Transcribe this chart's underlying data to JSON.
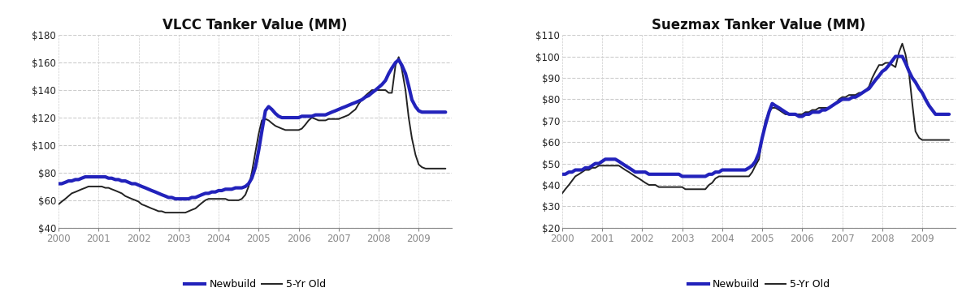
{
  "vlcc_title": "VLCC Tanker Value (MM)",
  "suez_title": "Suezmax Tanker Value (MM)",
  "vlcc_ylim": [
    40,
    180
  ],
  "vlcc_yticks": [
    40,
    60,
    80,
    100,
    120,
    140,
    160,
    180
  ],
  "suez_ylim": [
    20,
    110
  ],
  "suez_yticks": [
    20,
    30,
    40,
    50,
    60,
    70,
    80,
    90,
    100,
    110
  ],
  "xlim": [
    2000.0,
    2009.83
  ],
  "xticks": [
    2000,
    2001,
    2002,
    2003,
    2004,
    2005,
    2006,
    2007,
    2008,
    2009
  ],
  "newbuild_color": "#2222bb",
  "fiveyr_color": "#222222",
  "newbuild_lw": 3.0,
  "fiveyr_lw": 1.4,
  "title_fontsize": 12,
  "tick_fontsize": 8.5,
  "legend_fontsize": 9,
  "bg_color": "#ffffff",
  "grid_color": "#cccccc",
  "vlcc_newbuild_x": [
    2000.0,
    2000.08,
    2000.17,
    2000.25,
    2000.33,
    2000.42,
    2000.5,
    2000.58,
    2000.67,
    2000.75,
    2000.83,
    2000.92,
    2001.0,
    2001.08,
    2001.17,
    2001.25,
    2001.33,
    2001.42,
    2001.5,
    2001.58,
    2001.67,
    2001.75,
    2001.83,
    2001.92,
    2002.0,
    2002.08,
    2002.17,
    2002.25,
    2002.33,
    2002.42,
    2002.5,
    2002.58,
    2002.67,
    2002.75,
    2002.83,
    2002.92,
    2003.0,
    2003.08,
    2003.17,
    2003.25,
    2003.33,
    2003.42,
    2003.5,
    2003.58,
    2003.67,
    2003.75,
    2003.83,
    2003.92,
    2004.0,
    2004.08,
    2004.17,
    2004.25,
    2004.33,
    2004.42,
    2004.5,
    2004.58,
    2004.67,
    2004.75,
    2004.83,
    2004.92,
    2005.0,
    2005.08,
    2005.17,
    2005.25,
    2005.33,
    2005.42,
    2005.5,
    2005.58,
    2005.67,
    2005.75,
    2005.83,
    2005.92,
    2006.0,
    2006.08,
    2006.17,
    2006.25,
    2006.33,
    2006.42,
    2006.5,
    2006.58,
    2006.67,
    2006.75,
    2006.83,
    2006.92,
    2007.0,
    2007.08,
    2007.17,
    2007.25,
    2007.33,
    2007.42,
    2007.5,
    2007.58,
    2007.67,
    2007.75,
    2007.83,
    2007.92,
    2008.0,
    2008.08,
    2008.17,
    2008.25,
    2008.33,
    2008.42,
    2008.5,
    2008.58,
    2008.67,
    2008.75,
    2008.83,
    2008.92,
    2009.0,
    2009.08,
    2009.17,
    2009.25,
    2009.33,
    2009.42,
    2009.5,
    2009.58,
    2009.67
  ],
  "vlcc_newbuild_y": [
    72,
    72,
    73,
    74,
    74,
    75,
    75,
    76,
    77,
    77,
    77,
    77,
    77,
    77,
    77,
    76,
    76,
    75,
    75,
    74,
    74,
    73,
    72,
    72,
    71,
    70,
    69,
    68,
    67,
    66,
    65,
    64,
    63,
    62,
    62,
    61,
    61,
    61,
    61,
    61,
    62,
    62,
    63,
    64,
    65,
    65,
    66,
    66,
    67,
    67,
    68,
    68,
    68,
    69,
    69,
    69,
    70,
    72,
    76,
    84,
    96,
    110,
    125,
    128,
    126,
    123,
    121,
    120,
    120,
    120,
    120,
    120,
    120,
    121,
    121,
    121,
    121,
    122,
    122,
    122,
    122,
    123,
    124,
    125,
    126,
    127,
    128,
    129,
    130,
    131,
    132,
    133,
    135,
    136,
    138,
    140,
    142,
    144,
    147,
    152,
    156,
    160,
    162,
    158,
    152,
    143,
    133,
    128,
    125,
    124,
    124,
    124,
    124,
    124,
    124,
    124,
    124
  ],
  "vlcc_fiveyr_x": [
    2000.0,
    2000.08,
    2000.17,
    2000.25,
    2000.33,
    2000.42,
    2000.5,
    2000.58,
    2000.67,
    2000.75,
    2000.83,
    2000.92,
    2001.0,
    2001.08,
    2001.17,
    2001.25,
    2001.33,
    2001.42,
    2001.5,
    2001.58,
    2001.67,
    2001.75,
    2001.83,
    2001.92,
    2002.0,
    2002.08,
    2002.17,
    2002.25,
    2002.33,
    2002.42,
    2002.5,
    2002.58,
    2002.67,
    2002.75,
    2002.83,
    2002.92,
    2003.0,
    2003.08,
    2003.17,
    2003.25,
    2003.33,
    2003.42,
    2003.5,
    2003.58,
    2003.67,
    2003.75,
    2003.83,
    2003.92,
    2004.0,
    2004.08,
    2004.17,
    2004.25,
    2004.33,
    2004.42,
    2004.5,
    2004.58,
    2004.67,
    2004.75,
    2004.83,
    2004.92,
    2005.0,
    2005.08,
    2005.17,
    2005.25,
    2005.33,
    2005.42,
    2005.5,
    2005.58,
    2005.67,
    2005.75,
    2005.83,
    2005.92,
    2006.0,
    2006.08,
    2006.17,
    2006.25,
    2006.33,
    2006.42,
    2006.5,
    2006.58,
    2006.67,
    2006.75,
    2006.83,
    2006.92,
    2007.0,
    2007.08,
    2007.17,
    2007.25,
    2007.33,
    2007.42,
    2007.5,
    2007.58,
    2007.67,
    2007.75,
    2007.83,
    2007.92,
    2008.0,
    2008.08,
    2008.17,
    2008.25,
    2008.33,
    2008.42,
    2008.5,
    2008.58,
    2008.67,
    2008.75,
    2008.83,
    2008.92,
    2009.0,
    2009.08,
    2009.17,
    2009.25,
    2009.33,
    2009.42,
    2009.5,
    2009.58,
    2009.67
  ],
  "vlcc_fiveyr_y": [
    57,
    59,
    61,
    63,
    65,
    66,
    67,
    68,
    69,
    70,
    70,
    70,
    70,
    70,
    69,
    69,
    68,
    67,
    66,
    65,
    63,
    62,
    61,
    60,
    59,
    57,
    56,
    55,
    54,
    53,
    52,
    52,
    51,
    51,
    51,
    51,
    51,
    51,
    51,
    52,
    53,
    54,
    56,
    58,
    60,
    61,
    61,
    61,
    61,
    61,
    61,
    60,
    60,
    60,
    60,
    61,
    64,
    70,
    80,
    95,
    108,
    118,
    119,
    118,
    116,
    114,
    113,
    112,
    111,
    111,
    111,
    111,
    111,
    112,
    115,
    118,
    120,
    119,
    118,
    118,
    118,
    119,
    119,
    119,
    119,
    120,
    121,
    122,
    124,
    126,
    130,
    133,
    136,
    138,
    140,
    140,
    140,
    140,
    140,
    138,
    138,
    158,
    164,
    155,
    140,
    120,
    105,
    93,
    86,
    84,
    83,
    83,
    83,
    83,
    83,
    83,
    83
  ],
  "suez_newbuild_x": [
    2000.0,
    2000.08,
    2000.17,
    2000.25,
    2000.33,
    2000.42,
    2000.5,
    2000.58,
    2000.67,
    2000.75,
    2000.83,
    2000.92,
    2001.0,
    2001.08,
    2001.17,
    2001.25,
    2001.33,
    2001.42,
    2001.5,
    2001.58,
    2001.67,
    2001.75,
    2001.83,
    2001.92,
    2002.0,
    2002.08,
    2002.17,
    2002.25,
    2002.33,
    2002.42,
    2002.5,
    2002.58,
    2002.67,
    2002.75,
    2002.83,
    2002.92,
    2003.0,
    2003.08,
    2003.17,
    2003.25,
    2003.33,
    2003.42,
    2003.5,
    2003.58,
    2003.67,
    2003.75,
    2003.83,
    2003.92,
    2004.0,
    2004.08,
    2004.17,
    2004.25,
    2004.33,
    2004.42,
    2004.5,
    2004.58,
    2004.67,
    2004.75,
    2004.83,
    2004.92,
    2005.0,
    2005.08,
    2005.17,
    2005.25,
    2005.33,
    2005.42,
    2005.5,
    2005.58,
    2005.67,
    2005.75,
    2005.83,
    2005.92,
    2006.0,
    2006.08,
    2006.17,
    2006.25,
    2006.33,
    2006.42,
    2006.5,
    2006.58,
    2006.67,
    2006.75,
    2006.83,
    2006.92,
    2007.0,
    2007.08,
    2007.17,
    2007.25,
    2007.33,
    2007.42,
    2007.5,
    2007.58,
    2007.67,
    2007.75,
    2007.83,
    2007.92,
    2008.0,
    2008.08,
    2008.17,
    2008.25,
    2008.33,
    2008.42,
    2008.5,
    2008.58,
    2008.67,
    2008.75,
    2008.83,
    2008.92,
    2009.0,
    2009.08,
    2009.17,
    2009.25,
    2009.33,
    2009.42,
    2009.5,
    2009.58,
    2009.67
  ],
  "suez_newbuild_y": [
    45,
    45,
    46,
    46,
    47,
    47,
    47,
    48,
    48,
    49,
    50,
    50,
    51,
    52,
    52,
    52,
    52,
    51,
    50,
    49,
    48,
    47,
    46,
    46,
    46,
    46,
    45,
    45,
    45,
    45,
    45,
    45,
    45,
    45,
    45,
    45,
    44,
    44,
    44,
    44,
    44,
    44,
    44,
    44,
    45,
    45,
    46,
    46,
    47,
    47,
    47,
    47,
    47,
    47,
    47,
    47,
    48,
    49,
    51,
    55,
    62,
    68,
    74,
    78,
    77,
    76,
    75,
    74,
    73,
    73,
    73,
    72,
    72,
    73,
    73,
    74,
    74,
    74,
    75,
    75,
    76,
    77,
    78,
    79,
    80,
    80,
    80,
    81,
    81,
    82,
    83,
    84,
    85,
    87,
    89,
    91,
    93,
    94,
    96,
    98,
    100,
    100,
    100,
    97,
    93,
    90,
    88,
    85,
    83,
    80,
    77,
    75,
    73,
    73,
    73,
    73,
    73
  ],
  "suez_fiveyr_x": [
    2000.0,
    2000.08,
    2000.17,
    2000.25,
    2000.33,
    2000.42,
    2000.5,
    2000.58,
    2000.67,
    2000.75,
    2000.83,
    2000.92,
    2001.0,
    2001.08,
    2001.17,
    2001.25,
    2001.33,
    2001.42,
    2001.5,
    2001.58,
    2001.67,
    2001.75,
    2001.83,
    2001.92,
    2002.0,
    2002.08,
    2002.17,
    2002.25,
    2002.33,
    2002.42,
    2002.5,
    2002.58,
    2002.67,
    2002.75,
    2002.83,
    2002.92,
    2003.0,
    2003.08,
    2003.17,
    2003.25,
    2003.33,
    2003.42,
    2003.5,
    2003.58,
    2003.67,
    2003.75,
    2003.83,
    2003.92,
    2004.0,
    2004.08,
    2004.17,
    2004.25,
    2004.33,
    2004.42,
    2004.5,
    2004.58,
    2004.67,
    2004.75,
    2004.83,
    2004.92,
    2005.0,
    2005.08,
    2005.17,
    2005.25,
    2005.33,
    2005.42,
    2005.5,
    2005.58,
    2005.67,
    2005.75,
    2005.83,
    2005.92,
    2006.0,
    2006.08,
    2006.17,
    2006.25,
    2006.33,
    2006.42,
    2006.5,
    2006.58,
    2006.67,
    2006.75,
    2006.83,
    2006.92,
    2007.0,
    2007.08,
    2007.17,
    2007.25,
    2007.33,
    2007.42,
    2007.5,
    2007.58,
    2007.67,
    2007.75,
    2007.83,
    2007.92,
    2008.0,
    2008.08,
    2008.17,
    2008.25,
    2008.33,
    2008.42,
    2008.5,
    2008.58,
    2008.67,
    2008.75,
    2008.83,
    2008.92,
    2009.0,
    2009.08,
    2009.17,
    2009.25,
    2009.33,
    2009.42,
    2009.5,
    2009.58,
    2009.67
  ],
  "suez_fiveyr_y": [
    36,
    38,
    40,
    42,
    44,
    45,
    46,
    47,
    47,
    48,
    48,
    49,
    49,
    49,
    49,
    49,
    49,
    49,
    48,
    47,
    46,
    45,
    44,
    43,
    42,
    41,
    40,
    40,
    40,
    39,
    39,
    39,
    39,
    39,
    39,
    39,
    39,
    38,
    38,
    38,
    38,
    38,
    38,
    38,
    40,
    41,
    43,
    44,
    44,
    44,
    44,
    44,
    44,
    44,
    44,
    44,
    44,
    46,
    49,
    52,
    62,
    70,
    74,
    76,
    76,
    75,
    74,
    73,
    73,
    73,
    73,
    73,
    73,
    74,
    74,
    75,
    75,
    76,
    76,
    76,
    76,
    77,
    78,
    80,
    81,
    81,
    82,
    82,
    82,
    83,
    83,
    84,
    86,
    90,
    93,
    96,
    96,
    97,
    97,
    96,
    95,
    102,
    106,
    101,
    92,
    78,
    65,
    62,
    61,
    61,
    61,
    61,
    61,
    61,
    61,
    61,
    61
  ]
}
